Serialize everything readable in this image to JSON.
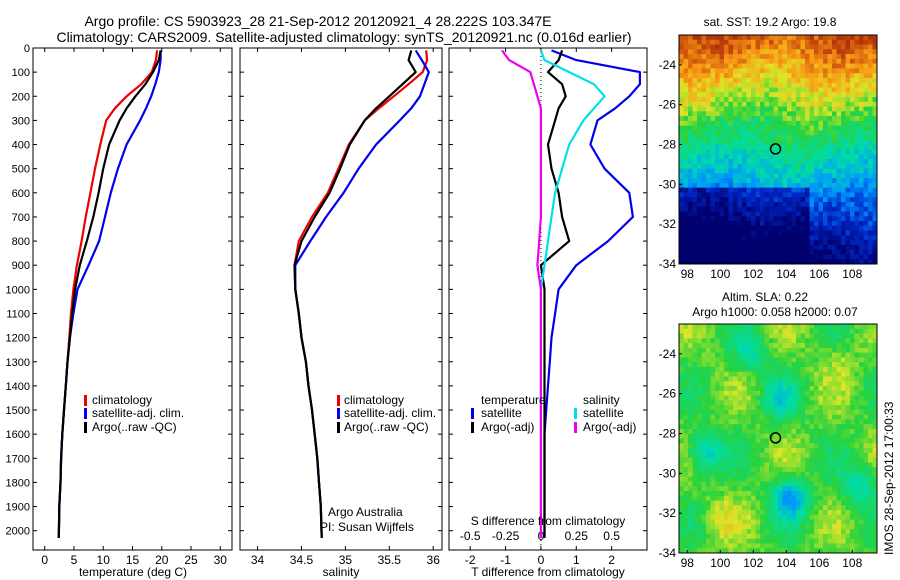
{
  "header": {
    "line1": "Argo profile: CS 5903923_28 21-Sep-2012 20120921_4 28.222S 103.347E",
    "line2": "Climatology: CARS2009. Satellite-adjusted climatology: synTS_20120921.nc (0.016d earlier)"
  },
  "credits": {
    "group": "Argo Australia",
    "pi": "PI: Susan Wijffels"
  },
  "sst_panel": {
    "title": "sat. SST: 19.2 Argo: 19.8"
  },
  "sla_panel": {
    "title1": "Altim. SLA: 0.22",
    "title2": "Argo h1000: 0.058 h2000: 0.07"
  },
  "stamp": "IMOS 28-Sep-2012 17:00:33",
  "colors": {
    "red": "#ee0000",
    "blue": "#0000ee",
    "black": "#000000",
    "cyan": "#00e0e8",
    "magenta": "#ee00ee"
  },
  "chart_data": [
    {
      "type": "line",
      "id": "temperature",
      "xlabel": "temperature (deg C)",
      "ylabel": "",
      "xlim": [
        -2,
        32
      ],
      "ylim": [
        2080,
        0
      ],
      "xticks": [
        0,
        5,
        10,
        15,
        20,
        25,
        30
      ],
      "yticks": [
        0,
        100,
        200,
        300,
        400,
        500,
        600,
        700,
        800,
        900,
        1000,
        1100,
        1200,
        1300,
        1400,
        1500,
        1600,
        1700,
        1800,
        1900,
        2000
      ],
      "legend": [
        "climatology",
        "satellite-adj. clim.",
        "Argo(..raw -QC)"
      ],
      "series": [
        {
          "name": "climatology",
          "color": "#ee0000",
          "x": [
            19.2,
            19.0,
            18.3,
            16.5,
            14.0,
            12.0,
            10.5,
            9.5,
            8.6,
            7.8,
            7.0,
            6.3,
            5.5,
            4.9,
            4.5,
            4.2,
            3.9,
            3.6,
            3.3,
            3.0,
            2.8,
            2.7,
            2.5,
            2.4
          ],
          "y": [
            10,
            50,
            100,
            150,
            200,
            250,
            300,
            400,
            500,
            600,
            700,
            800,
            900,
            1000,
            1100,
            1200,
            1300,
            1400,
            1500,
            1600,
            1700,
            1800,
            1900,
            2030
          ]
        },
        {
          "name": "satellite-adj. clim.",
          "color": "#0000ee",
          "x": [
            19.8,
            19.8,
            19.5,
            18.9,
            18.2,
            17.3,
            16.3,
            14.0,
            12.5,
            11.3,
            10.3,
            9.3,
            7.5,
            5.6,
            4.9,
            4.3,
            3.9,
            3.6,
            3.3,
            3.0,
            2.8,
            2.7,
            2.5,
            2.4
          ],
          "y": [
            10,
            50,
            100,
            150,
            200,
            250,
            300,
            400,
            500,
            600,
            700,
            800,
            900,
            1000,
            1100,
            1200,
            1300,
            1400,
            1500,
            1600,
            1700,
            1800,
            1900,
            2030
          ]
        },
        {
          "name": "Argo(..raw -QC)",
          "color": "#000000",
          "x": [
            19.8,
            19.5,
            18.5,
            17.2,
            15.5,
            14.0,
            12.8,
            11.0,
            10.0,
            9.2,
            8.3,
            7.2,
            6.0,
            5.2,
            4.7,
            4.3,
            3.9,
            3.6,
            3.3,
            3.0,
            2.8,
            2.7,
            2.5,
            2.4
          ],
          "y": [
            10,
            50,
            100,
            150,
            200,
            250,
            300,
            400,
            500,
            600,
            700,
            800,
            900,
            1000,
            1100,
            1200,
            1300,
            1400,
            1500,
            1600,
            1700,
            1800,
            1900,
            2030
          ]
        }
      ]
    },
    {
      "type": "line",
      "id": "salinity",
      "xlabel": "salinity",
      "ylabel": "",
      "xlim": [
        33.8,
        36.1
      ],
      "ylim": [
        2080,
        0
      ],
      "xticks": [
        34,
        34.5,
        35,
        35.5,
        36
      ],
      "legend": [
        "climatology",
        "satellite-adj. clim.",
        "Argo(..raw -QC)"
      ],
      "series": [
        {
          "name": "climatology",
          "color": "#ee0000",
          "x": [
            35.92,
            35.93,
            35.88,
            35.72,
            35.55,
            35.38,
            35.22,
            35.04,
            34.92,
            34.8,
            34.62,
            34.47,
            34.42,
            34.43,
            34.47,
            34.5,
            34.55,
            34.58,
            34.62,
            34.65,
            34.68,
            34.7,
            34.72,
            34.73
          ],
          "y": [
            10,
            50,
            100,
            150,
            200,
            250,
            300,
            400,
            500,
            600,
            700,
            800,
            900,
            1000,
            1100,
            1200,
            1300,
            1400,
            1500,
            1600,
            1700,
            1800,
            1900,
            2030
          ]
        },
        {
          "name": "satellite-adj. clim.",
          "color": "#0000ee",
          "x": [
            35.8,
            35.87,
            35.95,
            35.9,
            35.85,
            35.75,
            35.62,
            35.35,
            35.15,
            34.98,
            34.78,
            34.6,
            34.43,
            34.43,
            34.47,
            34.5,
            34.55,
            34.58,
            34.62,
            34.65,
            34.68,
            34.7,
            34.72,
            34.73
          ],
          "y": [
            10,
            50,
            100,
            150,
            200,
            250,
            300,
            400,
            500,
            600,
            700,
            800,
            900,
            1000,
            1100,
            1200,
            1300,
            1400,
            1500,
            1600,
            1700,
            1800,
            1900,
            2030
          ]
        },
        {
          "name": "Argo(..raw -QC)",
          "color": "#000000",
          "x": [
            35.75,
            35.72,
            35.8,
            35.65,
            35.5,
            35.35,
            35.22,
            35.05,
            34.94,
            34.82,
            34.65,
            34.5,
            34.42,
            34.43,
            34.47,
            34.5,
            34.55,
            34.58,
            34.62,
            34.65,
            34.68,
            34.7,
            34.72,
            34.73
          ],
          "y": [
            10,
            50,
            100,
            150,
            200,
            250,
            300,
            400,
            500,
            600,
            700,
            800,
            900,
            1000,
            1100,
            1200,
            1300,
            1400,
            1500,
            1600,
            1700,
            1800,
            1900,
            2030
          ]
        }
      ]
    },
    {
      "type": "line",
      "id": "difference",
      "xlabel": "T difference from climatology",
      "xlabel_top": "S difference from climatology",
      "xlim": [
        -2.6,
        3.0
      ],
      "ylim": [
        2080,
        0
      ],
      "xticks": [
        -2,
        -1,
        0,
        1,
        2
      ],
      "xticks_top": [
        "-0.5",
        "-0.25",
        "0",
        "0.25",
        "0.5"
      ],
      "legend_temperature": {
        "title": "temperature",
        "items": [
          "satellite",
          "Argo(-adj)"
        ]
      },
      "legend_salinity": {
        "title": "salinity",
        "items": [
          "satellite",
          "Argo(-adj)"
        ]
      },
      "series": [
        {
          "name": "satellite",
          "group": "temperature",
          "color": "#0000ee",
          "x": [
            0.3,
            1.0,
            2.8,
            2.8,
            2.5,
            2.1,
            1.6,
            1.4,
            1.8,
            2.5,
            2.6,
            1.9,
            1.0,
            0.5,
            0.4,
            0.3,
            0.25,
            0.2,
            0.15,
            0.1,
            0.1,
            0.1,
            0.1,
            0.1
          ],
          "y": [
            10,
            50,
            100,
            150,
            200,
            250,
            300,
            400,
            500,
            600,
            700,
            800,
            900,
            1000,
            1100,
            1200,
            1300,
            1400,
            1500,
            1600,
            1700,
            1800,
            1900,
            2030
          ]
        },
        {
          "name": "Argo(-adj)",
          "group": "temperature",
          "color": "#000000",
          "x": [
            0.6,
            0.5,
            0.2,
            0.6,
            0.7,
            0.5,
            0.4,
            0.2,
            0.3,
            0.5,
            0.6,
            0.8,
            0.0,
            0.1,
            0.1,
            0.1,
            0.1,
            0.1,
            0.1,
            0.1,
            0.1,
            0.1,
            0.1,
            0.1
          ],
          "y": [
            10,
            50,
            100,
            150,
            200,
            250,
            300,
            400,
            500,
            600,
            700,
            800,
            900,
            1000,
            1100,
            1200,
            1300,
            1400,
            1500,
            1600,
            1700,
            1800,
            1900,
            2030
          ]
        },
        {
          "name": "satellite",
          "group": "salinity",
          "color": "#00e0e8",
          "x": [
            0.0,
            0.1,
            0.8,
            1.5,
            1.8,
            1.5,
            1.2,
            0.8,
            0.6,
            0.4,
            0.3,
            0.2,
            0.1,
            0.0,
            0.0,
            0.0,
            0.0,
            0.0,
            0.0,
            0.0,
            0.0,
            0.0,
            0.0,
            0.0
          ],
          "y": [
            10,
            50,
            100,
            150,
            200,
            250,
            300,
            400,
            500,
            600,
            700,
            800,
            900,
            1000,
            1100,
            1200,
            1300,
            1400,
            1500,
            1600,
            1700,
            1800,
            1900,
            2030
          ]
        },
        {
          "name": "Argo(-adj)",
          "group": "salinity",
          "color": "#ee00ee",
          "x": [
            -1.1,
            -0.9,
            -0.3,
            -0.2,
            -0.1,
            0.0,
            0.0,
            0.0,
            0.0,
            0.0,
            0.0,
            -0.05,
            -0.1,
            0.0,
            0.0,
            0.0,
            0.0,
            0.0,
            0.0,
            0.0,
            0.0,
            0.0,
            0.0,
            0.0
          ],
          "y": [
            10,
            50,
            100,
            150,
            200,
            250,
            300,
            400,
            500,
            600,
            700,
            800,
            900,
            1000,
            1100,
            1200,
            1300,
            1400,
            1500,
            1600,
            1700,
            1800,
            1900,
            2030
          ]
        }
      ]
    },
    {
      "type": "heatmap",
      "id": "sst_map",
      "title": "sat. SST: 19.2 Argo: 19.8",
      "xlim": [
        97.5,
        109.5
      ],
      "ylim": [
        -34,
        -22.5
      ],
      "xticks": [
        98,
        100,
        102,
        104,
        106,
        108
      ],
      "yticks": [
        -24,
        -26,
        -28,
        -30,
        -32,
        -34
      ],
      "marker": {
        "lon": 103.35,
        "lat": -28.22
      }
    },
    {
      "type": "heatmap",
      "id": "sla_map",
      "title": "Altim. SLA: 0.22",
      "xlim": [
        97.5,
        109.5
      ],
      "ylim": [
        -34,
        -22.5
      ],
      "xticks": [
        98,
        100,
        102,
        104,
        106,
        108
      ],
      "yticks": [
        -24,
        -26,
        -28,
        -30,
        -32,
        -34
      ],
      "marker": {
        "lon": 103.35,
        "lat": -28.22
      }
    }
  ]
}
